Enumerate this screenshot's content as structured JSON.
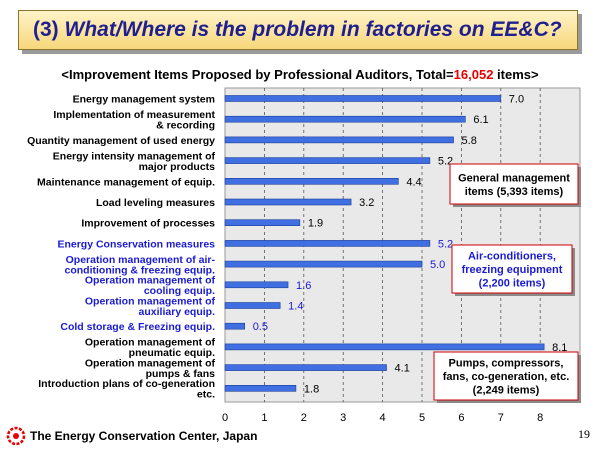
{
  "title": {
    "number": "(3)",
    "text": "What/Where is the problem in factories on EE&C?"
  },
  "subtitle": {
    "prefix": "<Improvement Items Proposed by Professional Auditors, Total=",
    "total": "16,052",
    "suffix": " items>"
  },
  "chart_data": {
    "type": "bar",
    "orientation": "horizontal",
    "title": "<Improvement Items Proposed by Professional Auditors, Total=16,052 items>",
    "xlim": [
      0,
      9
    ],
    "xticks": [
      "0",
      "1",
      "2",
      "3",
      "4",
      "5",
      "6",
      "7",
      "8"
    ],
    "grid": true,
    "categories": [
      {
        "label": [
          "Energy management system"
        ],
        "value": 7.0,
        "display": "7.0",
        "color": "black"
      },
      {
        "label": [
          "Implementation of measurement",
          "& recording"
        ],
        "value": 6.1,
        "display": "6.1",
        "color": "black"
      },
      {
        "label": [
          "Quantity management of used energy"
        ],
        "value": 5.8,
        "display": "5.8",
        "color": "black"
      },
      {
        "label": [
          "Energy intensity management of",
          "major products"
        ],
        "value": 5.2,
        "display": "5.2",
        "color": "black"
      },
      {
        "label": [
          "Maintenance management of equip."
        ],
        "value": 4.4,
        "display": "4.4",
        "color": "black"
      },
      {
        "label": [
          "Load leveling measures"
        ],
        "value": 3.2,
        "display": "3.2",
        "color": "black"
      },
      {
        "label": [
          "Improvement of processes"
        ],
        "value": 1.9,
        "display": "1.9",
        "color": "black"
      },
      {
        "label": [
          "Energy Conservation measures"
        ],
        "value": 5.2,
        "display": "5.2",
        "color": "blue"
      },
      {
        "label": [
          "Operation management of air-",
          "conditioning & freezing equip."
        ],
        "value": 5.0,
        "display": "5.0",
        "color": "blue"
      },
      {
        "label": [
          "Operation management of",
          "cooling equip."
        ],
        "value": 1.6,
        "display": "1.6",
        "color": "blue"
      },
      {
        "label": [
          "Operation management of",
          "auxiliary equip."
        ],
        "value": 1.4,
        "display": "1.4",
        "color": "blue"
      },
      {
        "label": [
          "Cold storage & Freezing equip."
        ],
        "value": 0.5,
        "display": "0.5",
        "color": "blue"
      },
      {
        "label": [
          "Operation management of",
          "pneumatic equip."
        ],
        "value": 8.1,
        "display": "8.1",
        "color": "black"
      },
      {
        "label": [
          "Operation management of",
          "pumps & fans"
        ],
        "value": 4.1,
        "display": "4.1",
        "color": "black"
      },
      {
        "label": [
          "Introduction plans of co-generation",
          "etc."
        ],
        "value": 1.8,
        "display": "1.8",
        "color": "black"
      }
    ],
    "annotations": [
      {
        "lines": [
          "General management",
          "items (5,393 items)"
        ],
        "color": "black"
      },
      {
        "lines": [
          "Air-conditioners,",
          "freezing equipment",
          "(2,200 items)"
        ],
        "color": "blue"
      },
      {
        "lines": [
          "Pumps, compressors,",
          "fans, co-generation, etc.",
          "(2,249 items)"
        ],
        "color": "black"
      }
    ],
    "bar_color": "#3f6fe0"
  },
  "footer": {
    "org": "The Energy Conservation Center, Japan",
    "page": "19"
  }
}
